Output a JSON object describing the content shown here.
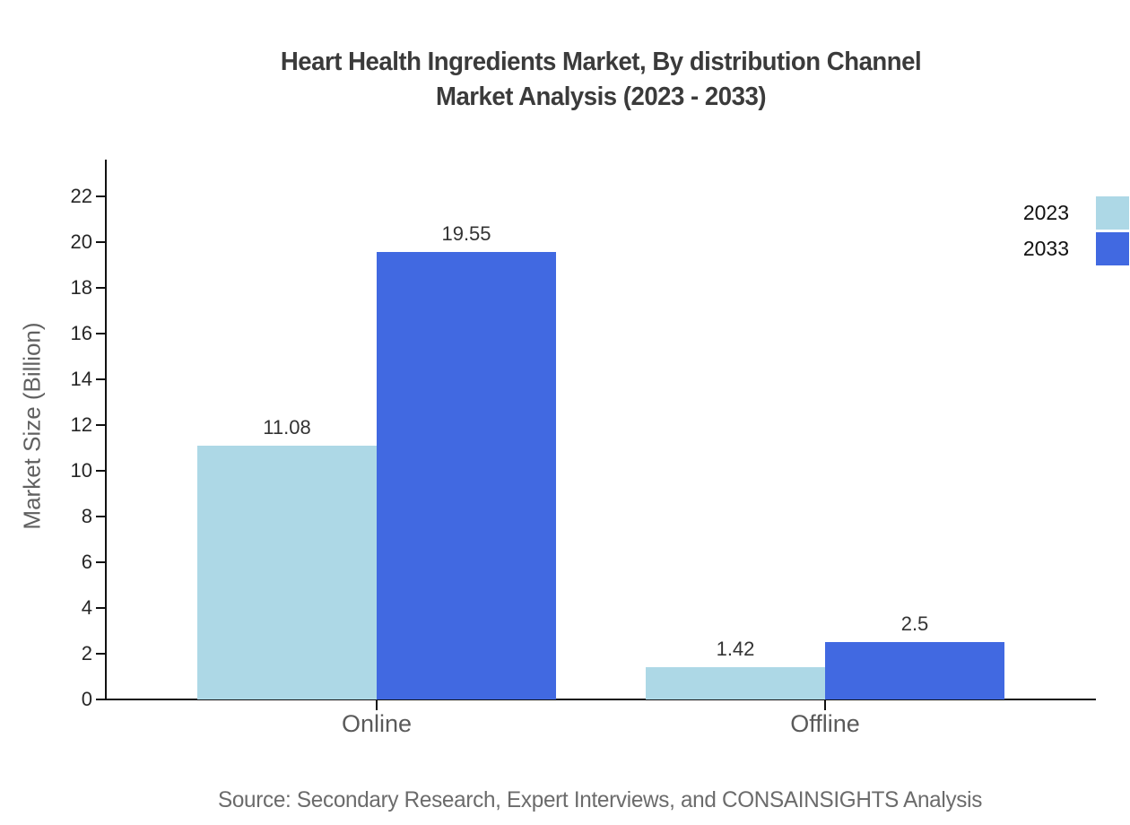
{
  "chart": {
    "title_line1": "Heart Health Ingredients Market, By distribution Channel",
    "title_line2": "Market Analysis (2023 - 2033)",
    "source": "Source: Secondary Research, Expert Interviews, and CONSAINSIGHTS Analysis"
  },
  "chart_data": {
    "type": "bar",
    "title": "Heart Health Ingredients Market, By distribution Channel Market Analysis (2023 - 2033)",
    "categories": [
      "Online",
      "Offline"
    ],
    "series": [
      {
        "name": "2023",
        "color": "#ADD8E6",
        "values": [
          11.08,
          1.42
        ]
      },
      {
        "name": "2033",
        "color": "#4169E1",
        "values": [
          19.55,
          2.5
        ]
      }
    ],
    "value_labels": [
      [
        "11.08",
        "1.42"
      ],
      [
        "19.55",
        "2.5"
      ]
    ],
    "xlabel": "",
    "ylabel": "Market Size (Billion)",
    "ylim": [
      0,
      23.5
    ],
    "yticks": [
      0,
      2,
      4,
      6,
      8,
      10,
      12,
      14,
      16,
      18,
      20,
      22
    ],
    "grid": false,
    "legend_position": "upper-right-outside",
    "value_label_color": "#333333",
    "axis_color": "#111111"
  }
}
